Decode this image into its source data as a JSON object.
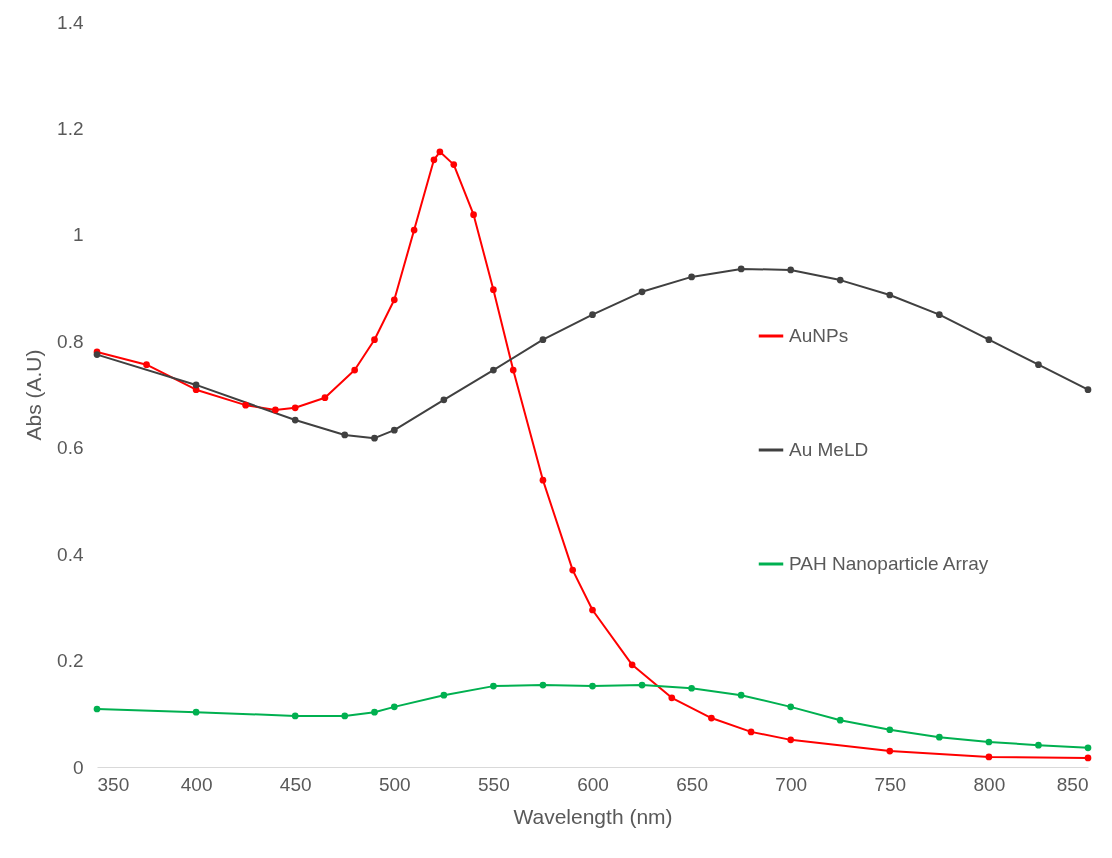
{
  "chart_data": {
    "type": "line",
    "xlabel": "Wavelength (nm)",
    "ylabel": "Abs (A.U)",
    "xlim": [
      350,
      850
    ],
    "xticks": [
      350,
      400,
      450,
      500,
      550,
      600,
      650,
      700,
      750,
      800,
      850
    ],
    "ylim": [
      0,
      1.4
    ],
    "yticks": [
      0,
      0.2,
      0.4,
      0.6,
      0.8,
      1,
      1.2,
      1.4
    ],
    "grid": false,
    "legend": "right",
    "marker": "circle",
    "series": [
      {
        "name": "AuNPs",
        "color": "#ff0000",
        "x": [
          350,
          375,
          400,
          425,
          440,
          450,
          465,
          480,
          490,
          500,
          510,
          520,
          523,
          530,
          540,
          550,
          560,
          575,
          590,
          600,
          620,
          640,
          660,
          680,
          700,
          750,
          800,
          850
        ],
        "values": [
          0.78,
          0.756,
          0.709,
          0.68,
          0.671,
          0.675,
          0.694,
          0.746,
          0.803,
          0.878,
          1.009,
          1.141,
          1.156,
          1.132,
          1.038,
          0.897,
          0.746,
          0.539,
          0.37,
          0.295,
          0.192,
          0.13,
          0.092,
          0.066,
          0.051,
          0.03,
          0.019,
          0.017
        ]
      },
      {
        "name": "Au MeLD",
        "color": "#404040",
        "x": [
          350,
          400,
          450,
          475,
          490,
          500,
          525,
          550,
          575,
          600,
          625,
          650,
          675,
          700,
          725,
          750,
          775,
          800,
          825,
          850
        ],
        "values": [
          0.775,
          0.718,
          0.652,
          0.624,
          0.618,
          0.633,
          0.69,
          0.746,
          0.803,
          0.85,
          0.893,
          0.921,
          0.936,
          0.934,
          0.915,
          0.887,
          0.85,
          0.803,
          0.756,
          0.709
        ]
      },
      {
        "name": "PAH Nanoparticle Array",
        "color": "#00b050",
        "x": [
          350,
          400,
          450,
          475,
          490,
          500,
          525,
          550,
          575,
          600,
          625,
          650,
          675,
          700,
          725,
          750,
          775,
          800,
          825,
          850
        ],
        "values": [
          0.109,
          0.103,
          0.096,
          0.096,
          0.103,
          0.113,
          0.135,
          0.152,
          0.154,
          0.152,
          0.154,
          0.148,
          0.135,
          0.113,
          0.088,
          0.07,
          0.056,
          0.047,
          0.041,
          0.036
        ]
      }
    ]
  }
}
